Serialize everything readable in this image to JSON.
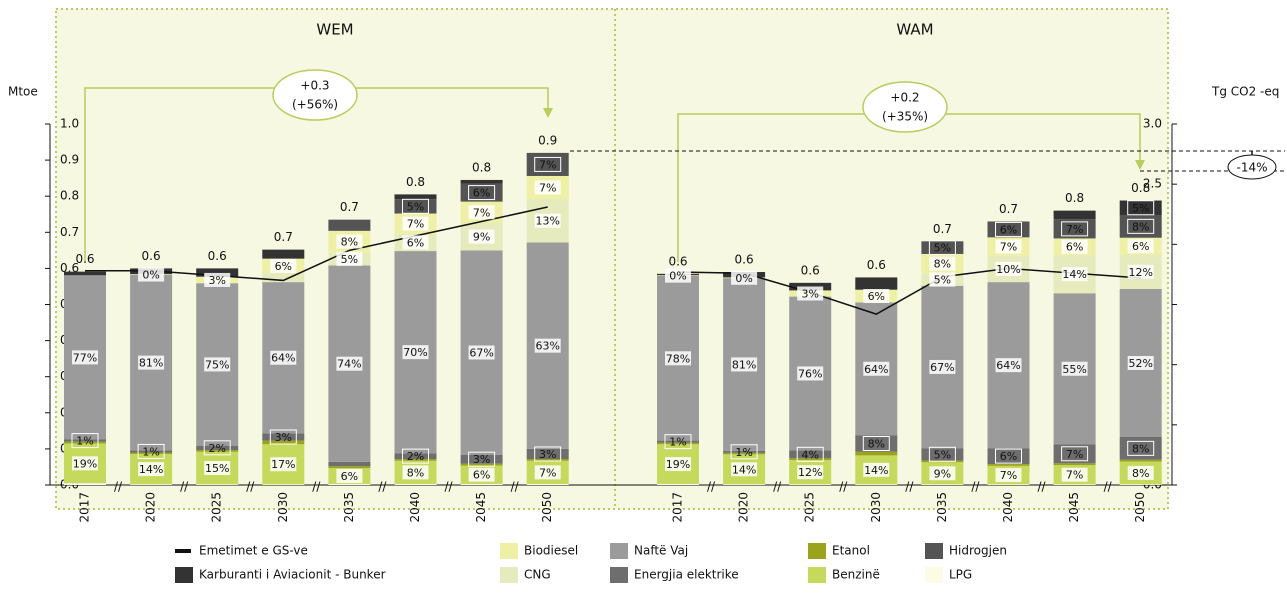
{
  "chart_data": [
    {
      "type": "bar",
      "title": "WEM",
      "y_label": "Mtoe",
      "ylim": [
        0,
        1
      ],
      "y2lim": [
        0,
        3
      ],
      "yticks": [
        {
          "value": 0,
          "label": "0.0"
        },
        0.1,
        0.2,
        0.3,
        0.4,
        0.5,
        0.6,
        0.7,
        0.8,
        0.9,
        {
          "value": 1,
          "label": "1.0"
        }
      ],
      "categories": [
        "2017",
        "2020",
        "2025",
        "2030",
        "2035",
        "2040",
        "2045",
        "2050"
      ],
      "totals": [
        0.6,
        0.6,
        0.6,
        0.7,
        0.7,
        0.8,
        0.8,
        0.9
      ],
      "annotations": [
        "+0.3",
        "(+56%)"
      ],
      "series": [
        {
          "name": "LPG",
          "color": "#fbfbe6",
          "values": [
            0.005,
            0.002,
            0.002,
            0.002,
            0.003,
            0.003,
            0.003,
            0.003
          ],
          "percent_labels": [
            null,
            null,
            null,
            null,
            null,
            null,
            null,
            null
          ]
        },
        {
          "name": "Benzinë",
          "color": "#c5d95c",
          "values": [
            0.11,
            0.084,
            0.09,
            0.111,
            0.044,
            0.064,
            0.051,
            0.064
          ],
          "percent_labels": [
            "19%",
            "14%",
            "15%",
            "17%",
            "6%",
            "8%",
            "6%",
            "7%"
          ]
        },
        {
          "name": "Etanol",
          "color": "#9ba31c",
          "values": [
            0.005,
            0.004,
            0.005,
            0.01,
            0.005,
            0.005,
            0.005,
            0.005
          ],
          "percent_labels": [
            null,
            null,
            null,
            null,
            null,
            null,
            null,
            null
          ]
        },
        {
          "name": "Energjia elektrike",
          "color": "#6e6e6e",
          "values": [
            0.006,
            0.006,
            0.012,
            0.02,
            0.012,
            0.016,
            0.025,
            0.028
          ],
          "percent_labels": [
            "1%",
            "1%",
            "2%",
            "3%",
            null,
            "2%",
            "3%",
            "3%"
          ]
        },
        {
          "name": "Naftë Vaj",
          "color": "#9b9b9b",
          "values": [
            0.455,
            0.486,
            0.45,
            0.419,
            0.544,
            0.56,
            0.566,
            0.572
          ],
          "percent_labels": [
            "77%",
            "81%",
            "75%",
            "64%",
            "74%",
            "70%",
            "67%",
            "63%"
          ]
        },
        {
          "name": "CNG",
          "color": "#e5ebbc",
          "values": [
            0,
            0,
            0,
            0.025,
            0.037,
            0.048,
            0.076,
            0.12
          ],
          "percent_labels": [
            null,
            null,
            null,
            null,
            "5%",
            "6%",
            "9%",
            "13%"
          ]
        },
        {
          "name": "Biodiesel",
          "color": "#eef0a6",
          "values": [
            0,
            0.002,
            0.018,
            0.04,
            0.059,
            0.056,
            0.059,
            0.064
          ],
          "percent_labels": [
            null,
            "0%",
            "3%",
            "6%",
            "8%",
            "7%",
            "7%",
            "7%"
          ]
        },
        {
          "name": "Hidrogjen",
          "color": "#545454",
          "values": [
            0,
            0,
            0,
            0,
            0.031,
            0.04,
            0.05,
            0.064
          ],
          "percent_labels": [
            null,
            null,
            null,
            null,
            null,
            "5%",
            "6%",
            "7%"
          ]
        },
        {
          "name": "Karburanti i Aviacionit - Bunker",
          "color": "#333333",
          "values": [
            0.01,
            0.016,
            0.023,
            0.025,
            0,
            0.013,
            0.01,
            0
          ],
          "percent_labels": [
            null,
            null,
            null,
            null,
            null,
            null,
            null,
            null
          ]
        },
        {
          "name": "Emetimet e GS-ve",
          "type": "line",
          "axis": "y2",
          "color": "#111111",
          "values": [
            1.78,
            1.78,
            1.74,
            1.7,
            1.95,
            2.07,
            2.19,
            2.31
          ]
        }
      ]
    },
    {
      "type": "bar",
      "title": "WAM",
      "y2_label": "Tg CO2 -eq",
      "ylim": [
        0,
        1
      ],
      "y2lim": [
        0,
        3
      ],
      "y2ticks": [
        {
          "value": 0,
          "label": "0.0"
        },
        0.5,
        {
          "value": 1,
          "label": "1.0"
        },
        1.5,
        {
          "value": 2,
          "label": "2.0"
        },
        2.5,
        {
          "value": 3,
          "label": "3.0"
        }
      ],
      "categories": [
        "2017",
        "2020",
        "2025",
        "2030",
        "2035",
        "2040",
        "2045",
        "2050"
      ],
      "totals": [
        0.6,
        0.6,
        0.6,
        0.6,
        0.7,
        0.7,
        0.8,
        0.8
      ],
      "annotations": [
        "+0.2",
        "(+35%)",
        "-14%"
      ],
      "series": [
        {
          "name": "LPG",
          "color": "#fbfbe6",
          "values": [
            0.003,
            0.002,
            0.002,
            0.002,
            0.002,
            0.002,
            0.002,
            0.002
          ],
          "percent_labels": [
            null,
            null,
            null,
            null,
            null,
            null,
            null,
            null
          ]
        },
        {
          "name": "Benzinë",
          "color": "#c5d95c",
          "values": [
            0.11,
            0.083,
            0.067,
            0.08,
            0.061,
            0.051,
            0.053,
            0.063
          ],
          "percent_labels": [
            "19%",
            "14%",
            "12%",
            "14%",
            "9%",
            "7%",
            "7%",
            "8%"
          ]
        },
        {
          "name": "Etanol",
          "color": "#9ba31c",
          "values": [
            0.004,
            0.004,
            0.005,
            0.01,
            0.005,
            0.005,
            0.005,
            0.005
          ],
          "percent_labels": [
            null,
            null,
            null,
            null,
            null,
            null,
            null,
            null
          ]
        },
        {
          "name": "Energjia elektrike",
          "color": "#6e6e6e",
          "values": [
            0.006,
            0.006,
            0.022,
            0.046,
            0.034,
            0.044,
            0.053,
            0.063
          ],
          "percent_labels": [
            "1%",
            "1%",
            "4%",
            "8%",
            "5%",
            "6%",
            "7%",
            "8%"
          ]
        },
        {
          "name": "Naftë Vaj",
          "color": "#9b9b9b",
          "values": [
            0.456,
            0.478,
            0.426,
            0.368,
            0.45,
            0.46,
            0.418,
            0.41
          ],
          "percent_labels": [
            "78%",
            "81%",
            "76%",
            "64%",
            "67%",
            "64%",
            "55%",
            "52%"
          ]
        },
        {
          "name": "CNG",
          "color": "#e5ebbc",
          "values": [
            0,
            0,
            0,
            0,
            0.034,
            0.073,
            0.106,
            0.095
          ],
          "percent_labels": [
            null,
            null,
            null,
            null,
            "5%",
            "10%",
            "14%",
            "12%"
          ]
        },
        {
          "name": "Biodiesel",
          "color": "#eef0a6",
          "values": [
            0.002,
            0.002,
            0.017,
            0.035,
            0.054,
            0.051,
            0.046,
            0.047
          ],
          "percent_labels": [
            "0%",
            "0%",
            "3%",
            "6%",
            "8%",
            "7%",
            "6%",
            "6%"
          ]
        },
        {
          "name": "Hidrogjen",
          "color": "#545454",
          "values": [
            0,
            0,
            0,
            0,
            0.035,
            0.044,
            0.053,
            0.063
          ],
          "percent_labels": [
            null,
            null,
            null,
            null,
            "5%",
            "6%",
            "7%",
            "8%"
          ]
        },
        {
          "name": "Karburanti i Aviacionit - Bunker",
          "color": "#333333",
          "values": [
            0.004,
            0.015,
            0.021,
            0.034,
            0,
            0,
            0.024,
            0.04
          ],
          "percent_labels": [
            null,
            null,
            null,
            null,
            null,
            null,
            null,
            "5%"
          ]
        },
        {
          "name": "Emetimet e GS-ve",
          "type": "line",
          "axis": "y2",
          "color": "#111111",
          "values": [
            1.77,
            1.76,
            1.6,
            1.42,
            1.73,
            1.8,
            1.76,
            1.72
          ]
        }
      ]
    }
  ]
}
